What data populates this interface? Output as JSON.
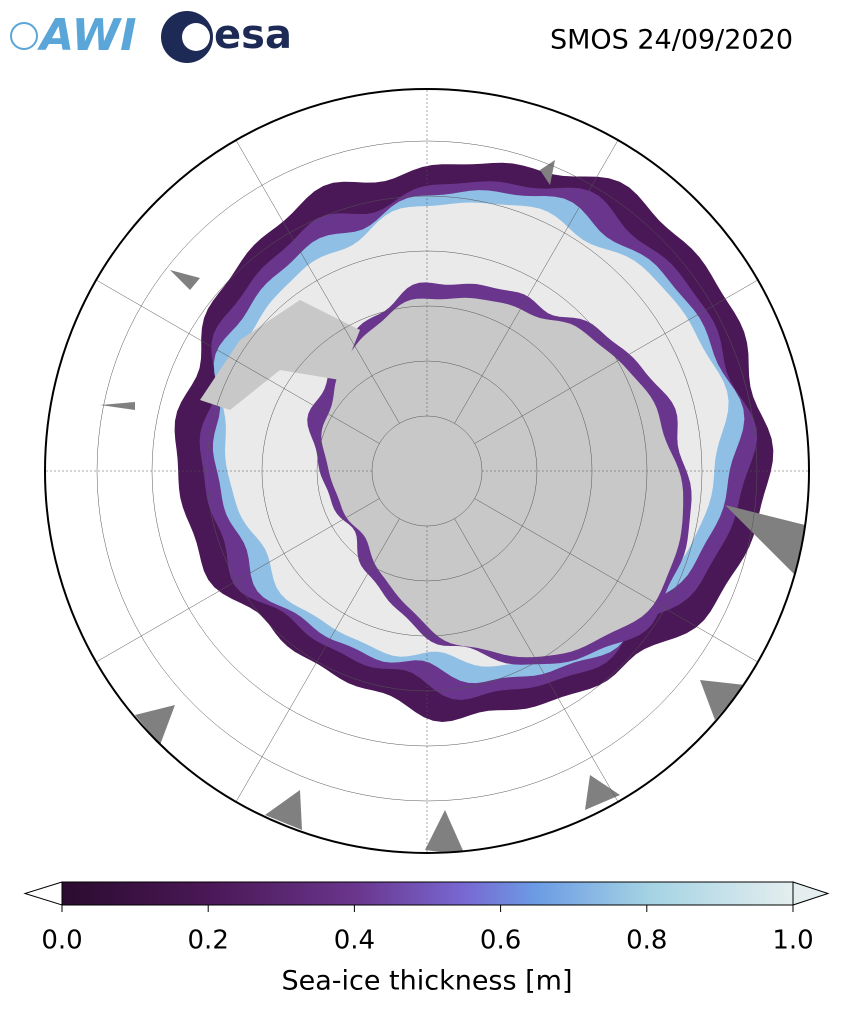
{
  "logos": {
    "awi": "AWI",
    "esa": "esa"
  },
  "title": "SMOS 24/09/2020",
  "colorbar": {
    "label": "Sea-ice thickness [m]",
    "lim": [
      0,
      1
    ],
    "ticks": [
      {
        "value": 0,
        "label": "0.0"
      },
      0.2,
      0.4,
      0.6,
      0.8,
      {
        "value": 1,
        "label": "1.0"
      }
    ]
  }
}
